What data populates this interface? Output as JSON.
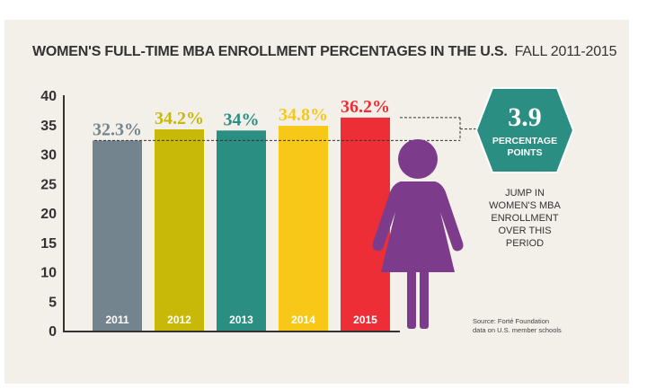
{
  "title": "WOMEN'S FULL-TIME MBA ENROLLMENT PERCENTAGES IN THE U.S.",
  "subtitle": "FALL 2011-2015",
  "colors": {
    "background": "#f3f0ea",
    "axis": "#333333",
    "badge": "#2a8f82",
    "figure": "#7d3b8c"
  },
  "chart_data": {
    "type": "bar",
    "categories": [
      "2011",
      "2012",
      "2013",
      "2014",
      "2015"
    ],
    "values": [
      32.3,
      34.2,
      34,
      34.8,
      36.2
    ],
    "data_labels": [
      "32.3%",
      "34.2%",
      "34%",
      "34.8%",
      "36.2%"
    ],
    "bar_colors": [
      "#74848f",
      "#c8b808",
      "#2a8f82",
      "#f8c818",
      "#ee2e36"
    ],
    "label_colors": [
      "#74848f",
      "#c8b808",
      "#2a8f82",
      "#f8c818",
      "#ee2e36"
    ],
    "ylim": [
      0,
      40
    ],
    "yticks": [
      "0",
      "5",
      "10",
      "15",
      "20",
      "25",
      "30",
      "35",
      "40"
    ],
    "reference_value": 32.3,
    "grid": false
  },
  "badge": {
    "value": "3.9",
    "line1": "PERCENTAGE",
    "line2": "POINTS"
  },
  "caption": [
    "JUMP IN",
    "WOMEN'S MBA",
    "ENROLLMENT",
    "OVER THIS",
    "PERIOD"
  ],
  "source": [
    "Source: Forté Foundation",
    "data on U.S. member schools"
  ],
  "icons": [
    "woman-figure-icon"
  ]
}
